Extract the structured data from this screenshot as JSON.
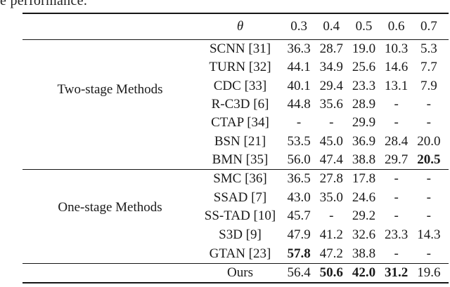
{
  "caption_fragment": "e performance.",
  "table": {
    "header": {
      "theta": "θ",
      "thresholds": [
        "0.3",
        "0.4",
        "0.5",
        "0.6",
        "0.7"
      ]
    },
    "groups": [
      {
        "label": "Two-stage Methods",
        "rows": [
          {
            "method": "SCNN [31]",
            "values": [
              "36.3",
              "28.7",
              "19.0",
              "10.3",
              "5.3"
            ],
            "bold": [
              false,
              false,
              false,
              false,
              false
            ]
          },
          {
            "method": "TURN [32]",
            "values": [
              "44.1",
              "34.9",
              "25.6",
              "14.6",
              "7.7"
            ],
            "bold": [
              false,
              false,
              false,
              false,
              false
            ]
          },
          {
            "method": "CDC [33]",
            "values": [
              "40.1",
              "29.4",
              "23.3",
              "13.1",
              "7.9"
            ],
            "bold": [
              false,
              false,
              false,
              false,
              false
            ]
          },
          {
            "method": "R-C3D [6]",
            "values": [
              "44.8",
              "35.6",
              "28.9",
              "-",
              "-"
            ],
            "bold": [
              false,
              false,
              false,
              false,
              false
            ]
          },
          {
            "method": "CTAP [34]",
            "values": [
              "-",
              "-",
              "29.9",
              "-",
              "-"
            ],
            "bold": [
              false,
              false,
              false,
              false,
              false
            ]
          },
          {
            "method": "BSN [21]",
            "values": [
              "53.5",
              "45.0",
              "36.9",
              "28.4",
              "20.0"
            ],
            "bold": [
              false,
              false,
              false,
              false,
              false
            ]
          },
          {
            "method": "BMN [35]",
            "values": [
              "56.0",
              "47.4",
              "38.8",
              "29.7",
              "20.5"
            ],
            "bold": [
              false,
              false,
              false,
              false,
              true
            ]
          }
        ]
      },
      {
        "label": "One-stage Methods",
        "rows": [
          {
            "method": "SMC [36]",
            "values": [
              "36.5",
              "27.8",
              "17.8",
              "-",
              "-"
            ],
            "bold": [
              false,
              false,
              false,
              false,
              false
            ]
          },
          {
            "method": "SSAD [7]",
            "values": [
              "43.0",
              "35.0",
              "24.6",
              "-",
              "-"
            ],
            "bold": [
              false,
              false,
              false,
              false,
              false
            ]
          },
          {
            "method": "SS-TAD [10]",
            "values": [
              "45.7",
              "-",
              "29.2",
              "-",
              "-"
            ],
            "bold": [
              false,
              false,
              false,
              false,
              false
            ]
          },
          {
            "method": "S3D [9]",
            "values": [
              "47.9",
              "41.2",
              "32.6",
              "23.3",
              "14.3"
            ],
            "bold": [
              false,
              false,
              false,
              false,
              false
            ]
          },
          {
            "method": "GTAN [23]",
            "values": [
              "57.8",
              "47.2",
              "38.8",
              "-",
              "-"
            ],
            "bold": [
              true,
              false,
              false,
              false,
              false
            ]
          }
        ]
      }
    ],
    "footer": {
      "method": "Ours",
      "values": [
        "56.4",
        "50.6",
        "42.0",
        "31.2",
        "19.6"
      ],
      "bold": [
        false,
        true,
        true,
        true,
        false
      ]
    }
  }
}
